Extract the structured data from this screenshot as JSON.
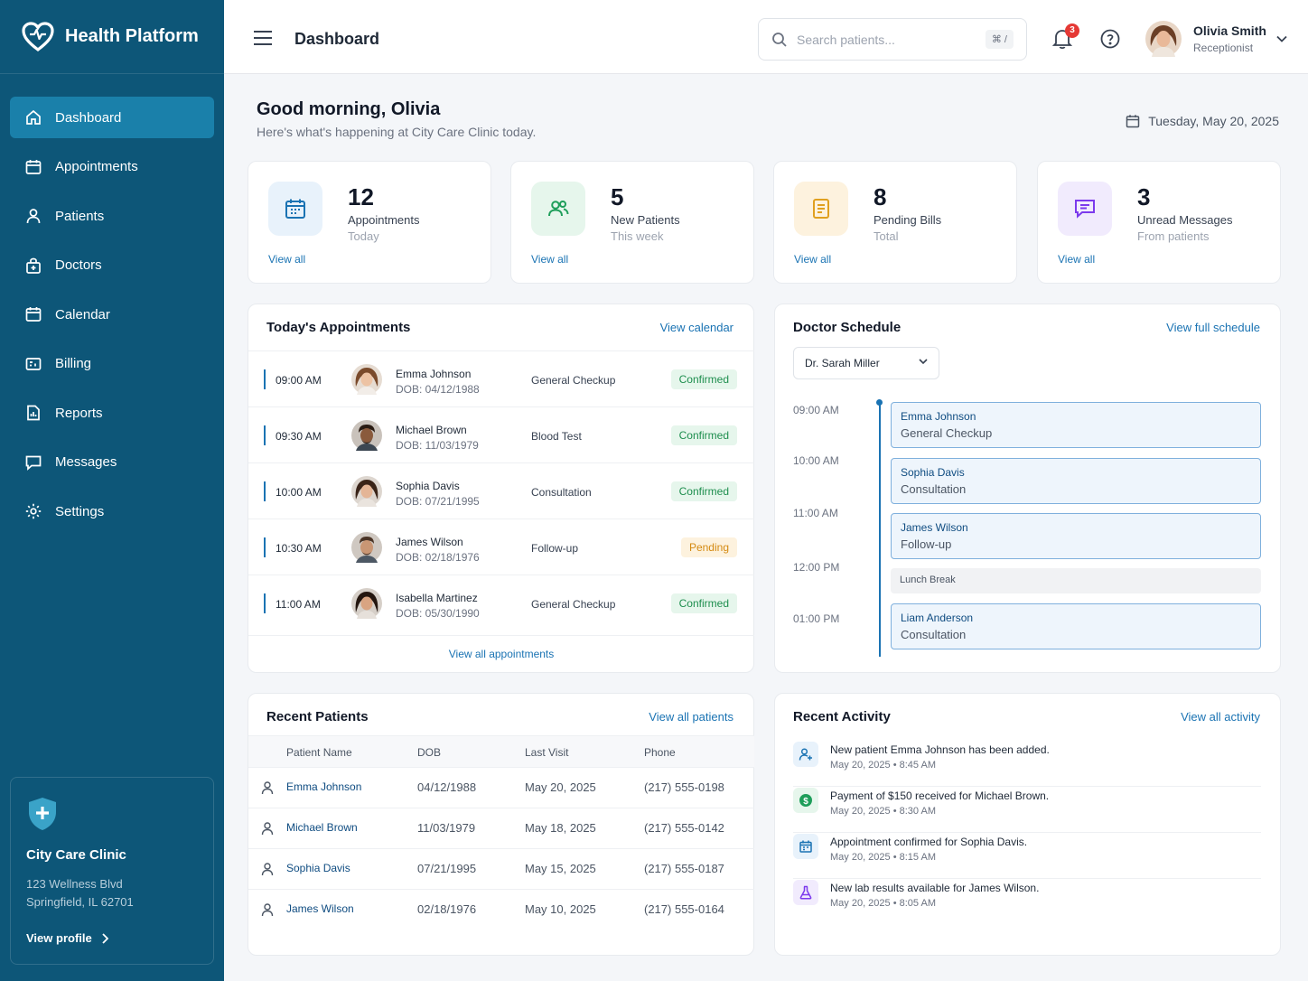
{
  "app": {
    "name": "Health Platform"
  },
  "sidebar": {
    "items": [
      {
        "label": "Dashboard",
        "icon": "home-icon"
      },
      {
        "label": "Appointments",
        "icon": "calendar-icon"
      },
      {
        "label": "Patients",
        "icon": "user-icon"
      },
      {
        "label": "Doctors",
        "icon": "stethoscope-icon"
      },
      {
        "label": "Calendar",
        "icon": "calendar-icon"
      },
      {
        "label": "Billing",
        "icon": "billing-icon"
      },
      {
        "label": "Reports",
        "icon": "report-icon"
      },
      {
        "label": "Messages",
        "icon": "message-icon"
      },
      {
        "label": "Settings",
        "icon": "gear-icon"
      }
    ],
    "clinic": {
      "name": "City Care Clinic",
      "address_line1": "123 Wellness Blvd",
      "address_line2": "Springfield, IL 62701",
      "link": "View profile"
    }
  },
  "header": {
    "title": "Dashboard",
    "search_placeholder": "Search patients...",
    "shortcut": "⌘ /",
    "notifications": "3",
    "user": {
      "name": "Olivia Smith",
      "role": "Receptionist"
    }
  },
  "greeting": {
    "title": "Good morning, Olivia",
    "subtitle": "Here's what's happening at City Care Clinic today.",
    "date": "Tuesday, May 20, 2025"
  },
  "stats": [
    {
      "value": "12",
      "label": "Appointments",
      "sub": "Today",
      "link": "View all",
      "color": "#1a73b3"
    },
    {
      "value": "5",
      "label": "New Patients",
      "sub": "This week",
      "link": "View all",
      "color": "#1e9e5a"
    },
    {
      "value": "8",
      "label": "Pending Bills",
      "sub": "Total",
      "link": "View all",
      "color": "#e0a020"
    },
    {
      "value": "3",
      "label": "Unread Messages",
      "sub": "From patients",
      "link": "View all",
      "color": "#7c3aed"
    }
  ],
  "appointments": {
    "title": "Today's Appointments",
    "link": "View calendar",
    "rows": [
      {
        "time": "09:00 AM",
        "name": "Emma Johnson",
        "dob": "DOB: 04/12/1988",
        "type": "General Checkup",
        "status": "Confirmed"
      },
      {
        "time": "09:30 AM",
        "name": "Michael Brown",
        "dob": "DOB: 11/03/1979",
        "type": "Blood Test",
        "status": "Confirmed"
      },
      {
        "time": "10:00 AM",
        "name": "Sophia Davis",
        "dob": "DOB: 07/21/1995",
        "type": "Consultation",
        "status": "Confirmed"
      },
      {
        "time": "10:30 AM",
        "name": "James Wilson",
        "dob": "DOB: 02/18/1976",
        "type": "Follow-up",
        "status": "Pending"
      },
      {
        "time": "11:00 AM",
        "name": "Isabella Martinez",
        "dob": "DOB: 05/30/1990",
        "type": "General Checkup",
        "status": "Confirmed"
      }
    ],
    "footer": "View all appointments"
  },
  "schedule": {
    "title": "Doctor Schedule",
    "link": "View full schedule",
    "doctor": "Dr. Sarah Miller",
    "times": [
      "09:00 AM",
      "10:00 AM",
      "11:00 AM",
      "12:00 PM",
      "01:00 PM"
    ],
    "slots": [
      {
        "name": "Emma Johnson",
        "desc": "General Checkup"
      },
      {
        "name": "Sophia Davis",
        "desc": "Consultation"
      },
      {
        "name": "James Wilson",
        "desc": "Follow-up"
      },
      {
        "name": "Lunch Break",
        "desc": ""
      },
      {
        "name": "Liam Anderson",
        "desc": "Consultation"
      }
    ]
  },
  "recent_patients": {
    "title": "Recent Patients",
    "link": "View all patients",
    "columns": [
      "Patient Name",
      "DOB",
      "Last Visit",
      "Phone"
    ],
    "rows": [
      {
        "name": "Emma Johnson",
        "dob": "04/12/1988",
        "last": "May 20, 2025",
        "phone": "(217) 555-0198"
      },
      {
        "name": "Michael Brown",
        "dob": "11/03/1979",
        "last": "May 18, 2025",
        "phone": "(217) 555-0142"
      },
      {
        "name": "Sophia Davis",
        "dob": "07/21/1995",
        "last": "May 15, 2025",
        "phone": "(217) 555-0187"
      },
      {
        "name": "James Wilson",
        "dob": "02/18/1976",
        "last": "May 10, 2025",
        "phone": "(217) 555-0164"
      }
    ]
  },
  "activity": {
    "title": "Recent Activity",
    "link": "View all activity",
    "items": [
      {
        "text": "New patient Emma Johnson has been added.",
        "meta": "May 20, 2025  •  8:45 AM",
        "icon": "user-add-icon"
      },
      {
        "text": "Payment of $150 received for Michael Brown.",
        "meta": "May 20, 2025  •  8:30 AM",
        "icon": "dollar-icon"
      },
      {
        "text": "Appointment confirmed for Sophia Davis.",
        "meta": "May 20, 2025  •  8:15 AM",
        "icon": "calendar-icon"
      },
      {
        "text": "New lab results available for James Wilson.",
        "meta": "May 20, 2025  •  8:05 AM",
        "icon": "flask-icon"
      }
    ]
  }
}
